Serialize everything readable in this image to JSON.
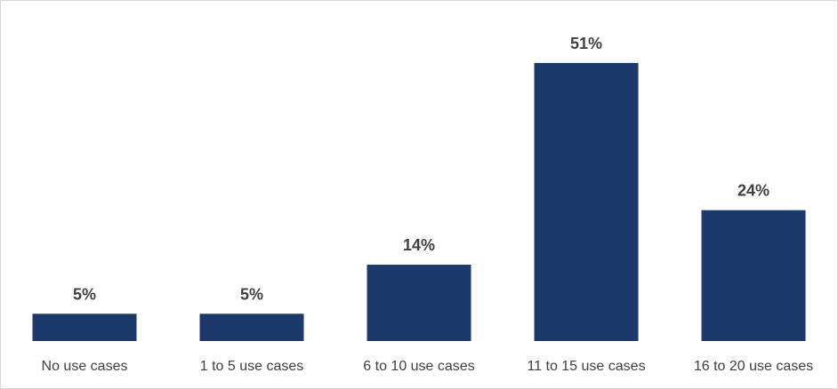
{
  "chart_data": {
    "type": "bar",
    "categories": [
      "No use cases",
      "1 to 5 use cases",
      "6 to 10 use cases",
      "11 to 15 use cases",
      "16 to 20 use cases"
    ],
    "values": [
      5,
      5,
      14,
      51,
      24
    ],
    "value_labels": [
      "5%",
      "5%",
      "14%",
      "51%",
      "24%"
    ],
    "title": "",
    "xlabel": "",
    "ylabel": "",
    "ylim": [
      0,
      60
    ],
    "grid": false,
    "legend": "none",
    "bar_color": "#1b3a6b"
  }
}
